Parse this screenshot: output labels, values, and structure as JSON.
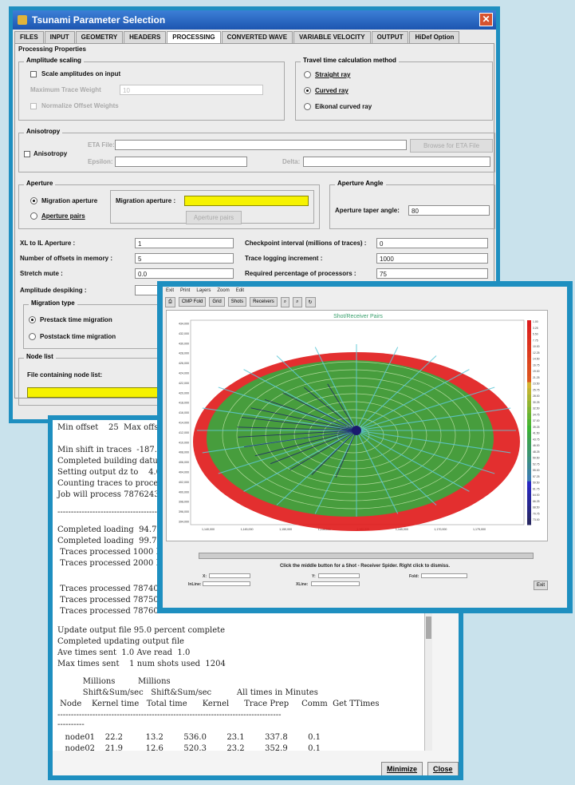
{
  "dialog": {
    "title": "Tsunami Parameter Selection",
    "tabs": [
      "FILES",
      "INPUT",
      "GEOMETRY",
      "HEADERS",
      "PROCESSING",
      "CONVERTED WAVE",
      "VARIABLE VELOCITY",
      "OUTPUT",
      "HiDef Option"
    ],
    "active_tab": "PROCESSING",
    "panel_title": "Processing Properties",
    "amplitude": {
      "title": "Amplitude scaling",
      "scale_label": "Scale amplitudes on input",
      "max_trace_label": "Maximum Trace Weight",
      "max_trace_value": "10",
      "normalize_label": "Normalize Offset Weights"
    },
    "travel": {
      "title": "Travel time calculation method",
      "options": [
        "Straight ray",
        "Curved ray",
        "Eikonal curved ray"
      ],
      "selected": "Curved ray"
    },
    "anisotropy": {
      "title": "Anisotropy",
      "checkbox_label": "Anisotropy",
      "eta_label": "ETA File:",
      "epsilon_label": "Epsilon:",
      "delta_label": "Delta:",
      "browse_label": "Browse for ETA File"
    },
    "aperture": {
      "title": "Aperture",
      "options": [
        "Migration aperture",
        "Aperture pairs"
      ],
      "selected": "Migration aperture",
      "field_label": "Migration aperture :",
      "pairs_button": "Aperture pairs"
    },
    "aperture_angle": {
      "title": "Aperture Angle",
      "taper_label": "Aperture taper angle:",
      "taper_value": "80"
    },
    "fields": {
      "xl_label": "XL to IL Aperture :",
      "xl_value": "1",
      "offsets_label": "Number of offsets in memory :",
      "offsets_value": "5",
      "stretch_label": "Stretch mute :",
      "stretch_value": "0.0",
      "despike_label": "Amplitude despiking :",
      "despike_value": "",
      "checkpoint_label": "Checkpoint interval (millions of traces) :",
      "checkpoint_value": "0",
      "logging_label": "Trace logging increment :",
      "logging_value": "1000",
      "required_label": "Required percentage of processors :",
      "required_value": "75"
    },
    "migration": {
      "title": "Migration type",
      "options": [
        "Prestack time migration",
        "Poststack time migration"
      ],
      "selected": "Prestack time migration"
    },
    "nodelist": {
      "title": "Node list",
      "file_label": "File containing node list:"
    }
  },
  "console": {
    "lines": [
      "Min offset    25  Max offse",
      "Min shift in traces  -187.00",
      "Completed building datum",
      "Setting output dz to    4.0",
      "Counting traces to process",
      "Job will process 7876243",
      "------------------------------------------",
      "Completed loading  94.7 p",
      "Completed loading  99.7 p",
      " Traces processed 1000 Pe",
      " Traces processed 2000 Pe",
      " Traces processed 7874000",
      " Traces processed 7875000",
      " Traces processed 7876000",
      "Update output file 95.0 percent complete",
      "Completed updating output file",
      "Ave times sent  1.0 Ave read  1.0",
      "Max times sent    1 num shots used  1204",
      "          Millions         Millions",
      "          Shift&Sum/sec   Shift&Sum/sec          All times in Minutes",
      " Node    Kernel time   Total time      Kernel      Trace Prep     Comm  Get TTimes",
      "-----------------------------------------------------------------------------------",
      "----------",
      "   node01    22.2         13.2        536.0        23.1        337.8        0.1",
      "   node02    21.9         12.6        520.3        23.2        352.9        0.1"
    ],
    "minimize_label": "Minimize",
    "close_label": "Close"
  },
  "viewer": {
    "menu": [
      "Exit",
      "Print",
      "Layers",
      "Zoom",
      "Edit"
    ],
    "toolbar": [
      "CMP Fold",
      "Grid",
      "Shots",
      "Receivers"
    ],
    "plot_title": "Shot/Receiver Pairs",
    "status": "Click the middle button for a Shot - Receiver Spider. Right click to dismiss.",
    "bottom_labels": [
      "X:",
      "Y:",
      "Fold:",
      "InLine:",
      "XLine:"
    ],
    "exit_label": "Exit",
    "y_ticks": [
      "434,000",
      "432,000",
      "430,000",
      "428,000",
      "426,000",
      "424,000",
      "422,000",
      "420,000",
      "418,000",
      "416,000",
      "414,000",
      "412,000",
      "410,000",
      "408,000",
      "406,000",
      "404,000",
      "402,000",
      "400,000",
      "398,000",
      "396,000",
      "394,000"
    ],
    "x_ticks": [
      "1,140,000",
      "1,145,000",
      "1,150,000",
      "1,155,000",
      "1,160,000",
      "1,165,000",
      "1,170,000",
      "1,175,000"
    ],
    "color_ticks": [
      "1.00",
      "3.25",
      "5.50",
      "7.75",
      "10.00",
      "12.25",
      "14.50",
      "16.75",
      "19.00",
      "21.25",
      "23.50",
      "25.75",
      "28.00",
      "30.25",
      "32.50",
      "34.75",
      "37.00",
      "39.25",
      "41.50",
      "43.75",
      "46.00",
      "48.25",
      "50.50",
      "52.75",
      "55.00",
      "57.25",
      "59.50",
      "61.75",
      "64.00",
      "66.25",
      "68.50",
      "70.75",
      "73.00"
    ],
    "colors": {
      "red": "#e01818",
      "green": "#3ea33e",
      "cyan": "#5fc8d8",
      "navy": "#1a1a6e"
    }
  }
}
